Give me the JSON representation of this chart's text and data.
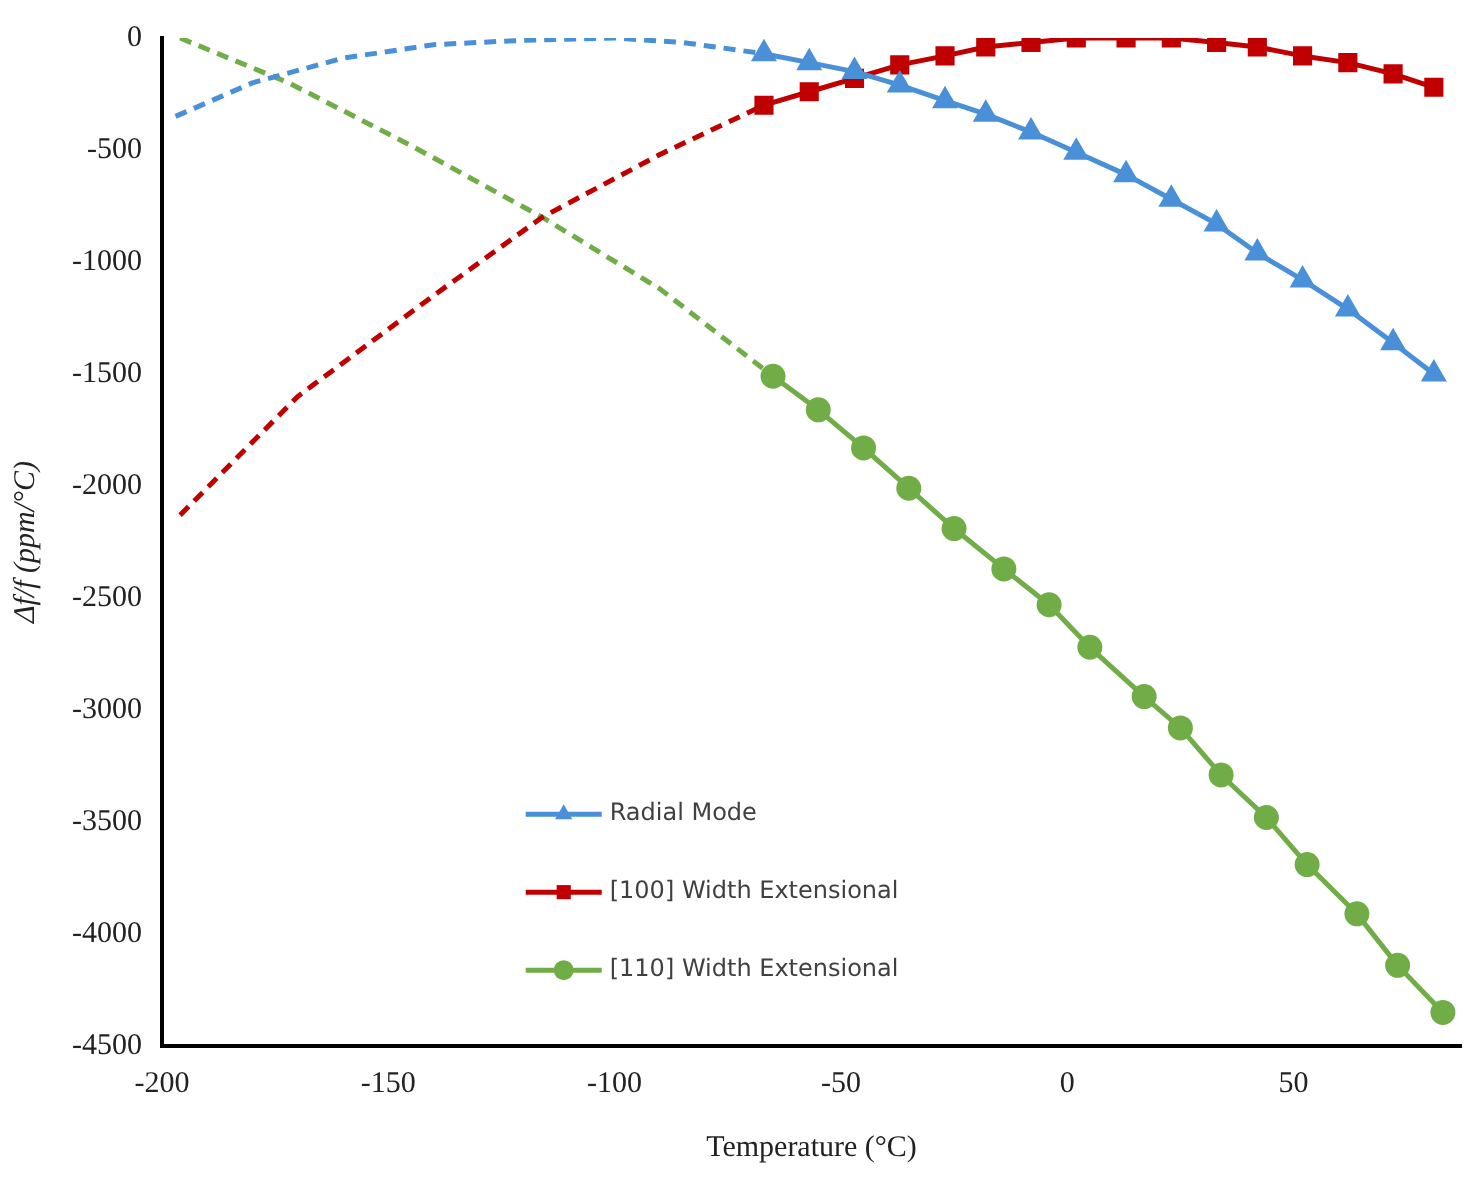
{
  "chart_data": {
    "type": "line",
    "xlabel": "Temperature (°C)",
    "ylabel": "Δf/f (ppm/°C)",
    "xlim": [
      -200,
      87
    ],
    "xticks": [
      -200,
      -150,
      -100,
      -50,
      0,
      50
    ],
    "ylim": [
      -4500,
      0
    ],
    "yticks": [
      -4500,
      -4000,
      -3500,
      -3000,
      -2500,
      -2000,
      -1500,
      -1000,
      -500,
      0
    ],
    "grid": false,
    "legend": "bottom left",
    "series": [
      {
        "name": "Radial Mode",
        "color": "#4a90d9",
        "marker": "triangle",
        "line_style": "solid",
        "x": [
          -67,
          -57,
          -47,
          -37,
          -27,
          -18,
          -8,
          2,
          13,
          23,
          33,
          42,
          52,
          62,
          72,
          81
        ],
        "values": [
          -70,
          -110,
          -150,
          -210,
          -280,
          -340,
          -420,
          -510,
          -610,
          -720,
          -830,
          -960,
          -1080,
          -1210,
          -1360,
          -1500
        ]
      },
      {
        "name": "[100] Width Extensional",
        "color": "#c00000",
        "marker": "square",
        "line_style": "solid",
        "x": [
          -67,
          -57,
          -47,
          -37,
          -27,
          -18,
          -8,
          2,
          13,
          23,
          33,
          42,
          52,
          62,
          72,
          81
        ],
        "values": [
          -300,
          -240,
          -180,
          -120,
          -80,
          -40,
          -20,
          0,
          0,
          0,
          -20,
          -40,
          -80,
          -110,
          -160,
          -220
        ]
      },
      {
        "name": "[110] Width Extensional",
        "color": "#70ad47",
        "marker": "circle",
        "line_style": "solid",
        "x": [
          -65,
          -55,
          -45,
          -35,
          -25,
          -14,
          -4,
          5,
          17,
          25,
          34,
          44,
          53,
          64,
          73,
          83
        ],
        "values": [
          -1510,
          -1660,
          -1830,
          -2010,
          -2190,
          -2370,
          -2530,
          -2720,
          -2940,
          -3080,
          -3290,
          -3480,
          -3690,
          -3910,
          -4140,
          -4350
        ]
      },
      {
        "color": "#4a90d9",
        "marker": "none",
        "line_style": "dashed",
        "x": [
          -197,
          -180,
          -160,
          -140,
          -120,
          -100,
          -85,
          -67
        ],
        "values": [
          -350,
          -200,
          -90,
          -30,
          -10,
          0,
          -20,
          -70
        ]
      },
      {
        "color": "#c00000",
        "marker": "none",
        "line_style": "dashed",
        "x": [
          -196,
          -170,
          -140,
          -116,
          -90,
          -67
        ],
        "values": [
          -2130,
          -1600,
          -1150,
          -800,
          -520,
          -300
        ]
      },
      {
        "color": "#70ad47",
        "marker": "none",
        "line_style": "dashed",
        "x": [
          -196,
          -172,
          -145,
          -116,
          -90,
          -65
        ],
        "values": [
          0,
          -200,
          -480,
          -800,
          -1120,
          -1510
        ]
      }
    ]
  }
}
